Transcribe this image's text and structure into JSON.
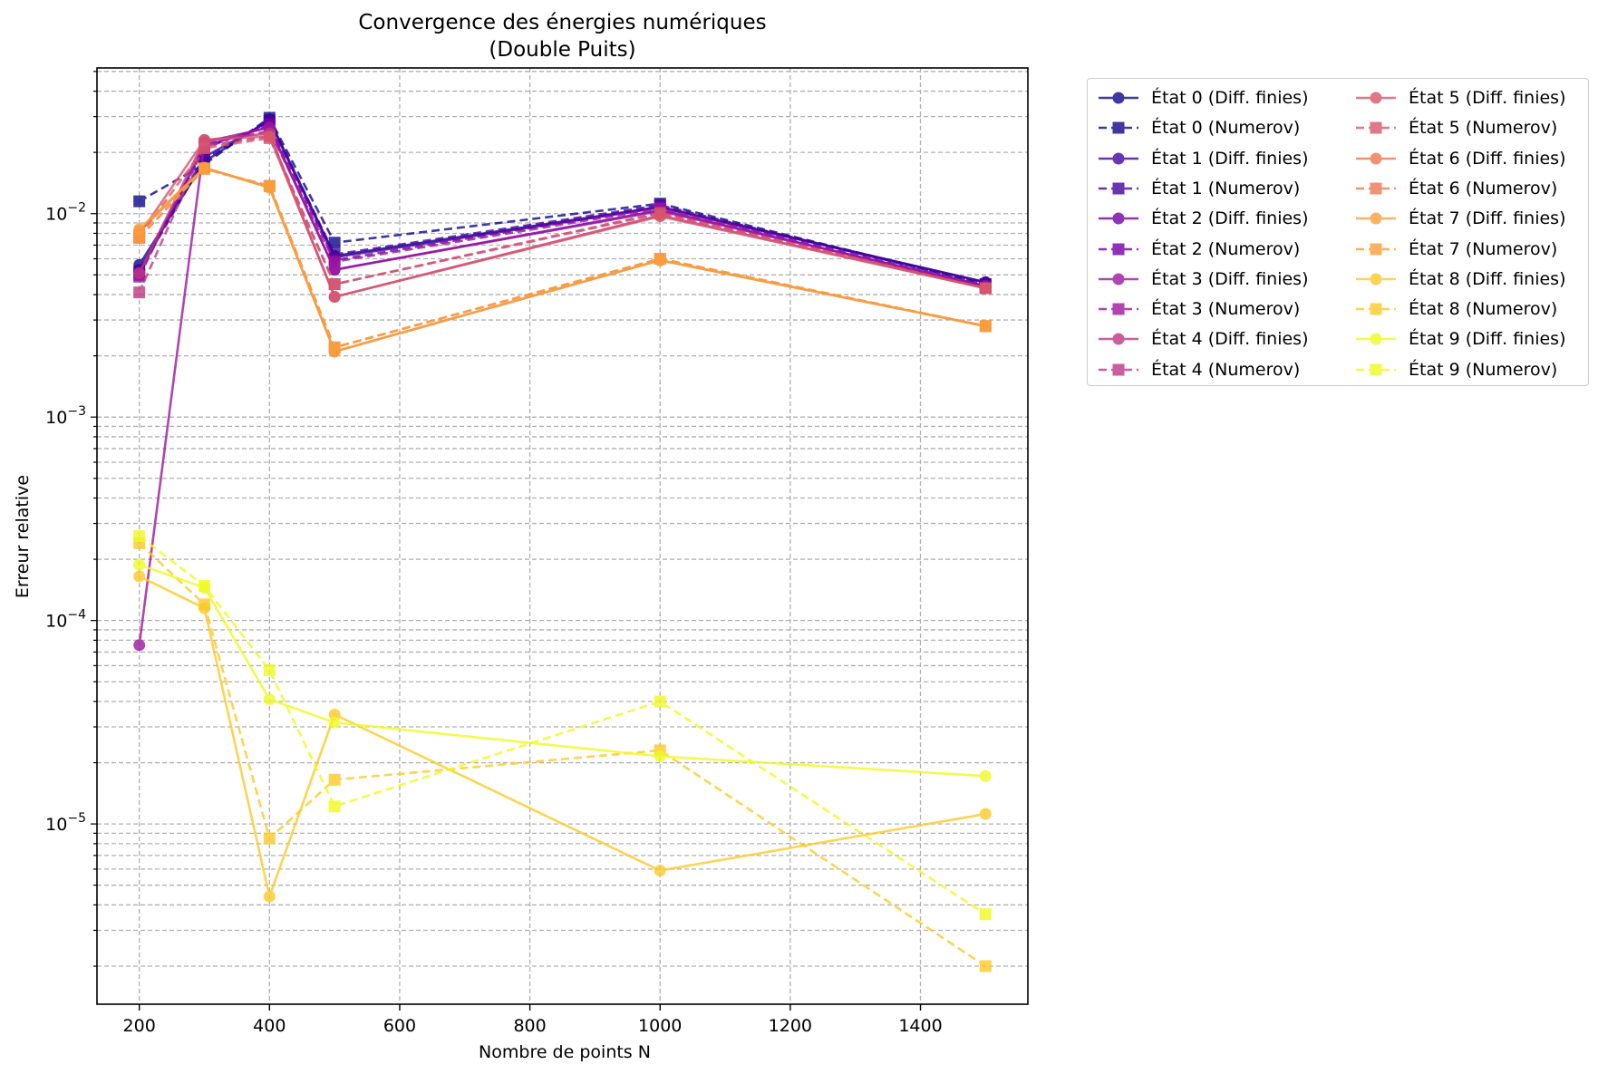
{
  "title": {
    "line1": "Convergence des énergies numériques",
    "line2": "(Double Puits)"
  },
  "chart_data": {
    "type": "line",
    "xlabel": "Nombre de points N",
    "ylabel": "Erreur relative",
    "xlim": [
      135,
      1565
    ],
    "ylim": [
      1.3e-06,
      0.052
    ],
    "yscale": "log",
    "grid": true,
    "legend_position": "outside-top-right",
    "x": [
      200,
      300,
      400,
      500,
      1000,
      1500
    ],
    "xticks": [
      200,
      400,
      600,
      800,
      1000,
      1200,
      1400
    ],
    "yticks": [
      {
        "value": 0.01,
        "base": "10",
        "exp": "−2"
      },
      {
        "value": 0.001,
        "base": "10",
        "exp": "−3"
      },
      {
        "value": 0.0001,
        "base": "10",
        "exp": "−4"
      },
      {
        "value": 1e-05,
        "base": "10",
        "exp": "−5"
      }
    ],
    "series": [
      {
        "name": "État 0 (Diff. finies)",
        "color": "#0d0887",
        "dash": "solid",
        "marker": "circle",
        "values": [
          0.0056,
          0.018,
          0.029,
          0.0062,
          0.0108,
          0.0046
        ]
      },
      {
        "name": "État 0 (Numerov)",
        "color": "#0d0887",
        "dash": "dashed",
        "marker": "square",
        "values": [
          0.0115,
          0.0175,
          0.0296,
          0.0072,
          0.0112,
          0.0045
        ]
      },
      {
        "name": "État 1 (Diff. finies)",
        "color": "#46039f",
        "dash": "solid",
        "marker": "circle",
        "values": [
          0.0053,
          0.019,
          0.0285,
          0.0061,
          0.0107,
          0.0046
        ]
      },
      {
        "name": "État 1 (Numerov)",
        "color": "#46039f",
        "dash": "dashed",
        "marker": "square",
        "values": [
          0.0052,
          0.0185,
          0.0288,
          0.0063,
          0.011,
          0.0045
        ]
      },
      {
        "name": "État 2 (Diff. finies)",
        "color": "#7201a8",
        "dash": "solid",
        "marker": "circle",
        "values": [
          0.0051,
          0.0215,
          0.0268,
          0.0053,
          0.0104,
          0.0044
        ]
      },
      {
        "name": "État 2 (Numerov)",
        "color": "#7201a8",
        "dash": "dashed",
        "marker": "square",
        "values": [
          0.005,
          0.021,
          0.0275,
          0.0059,
          0.0108,
          0.0044
        ]
      },
      {
        "name": "État 3 (Diff. finies)",
        "color": "#9c179e",
        "dash": "solid",
        "marker": "circle",
        "values": [
          7.57e-05,
          0.0225,
          0.0265,
          0.0053,
          0.0103,
          0.0044
        ]
      },
      {
        "name": "État 3 (Numerov)",
        "color": "#9c179e",
        "dash": "dashed",
        "marker": "square",
        "values": [
          0.0049,
          0.022,
          0.0255,
          0.0058,
          0.0106,
          0.0043
        ]
      },
      {
        "name": "État 4 (Diff. finies)",
        "color": "#bd3786",
        "dash": "solid",
        "marker": "circle",
        "values": [
          0.0051,
          0.023,
          0.0248,
          0.0039,
          0.0098,
          0.0043
        ]
      },
      {
        "name": "État 4 (Numerov)",
        "color": "#bd3786",
        "dash": "dashed",
        "marker": "square",
        "values": [
          0.0041,
          0.0215,
          0.024,
          0.0045,
          0.0101,
          0.0043
        ]
      },
      {
        "name": "État 5 (Diff. finies)",
        "color": "#d8576b",
        "dash": "solid",
        "marker": "circle",
        "values": [
          0.0079,
          0.023,
          0.024,
          0.0039,
          0.0097,
          0.0043
        ]
      },
      {
        "name": "État 5 (Numerov)",
        "color": "#d8576b",
        "dash": "dashed",
        "marker": "square",
        "values": [
          0.0077,
          0.021,
          0.0235,
          0.0045,
          0.01,
          0.0043
        ]
      },
      {
        "name": "État 6 (Diff. finies)",
        "color": "#ed7953",
        "dash": "solid",
        "marker": "circle",
        "values": [
          0.0082,
          0.0168,
          0.0135,
          0.0021,
          0.0059,
          0.0028
        ]
      },
      {
        "name": "État 6 (Numerov)",
        "color": "#ed7953",
        "dash": "dashed",
        "marker": "square",
        "values": [
          0.0076,
          0.0166,
          0.0137,
          0.0022,
          0.006,
          0.0028
        ]
      },
      {
        "name": "État 7 (Diff. finies)",
        "color": "#fb9f3a",
        "dash": "solid",
        "marker": "circle",
        "values": [
          0.0084,
          0.0168,
          0.0134,
          0.0021,
          0.0059,
          0.0028
        ]
      },
      {
        "name": "État 7 (Numerov)",
        "color": "#fb9f3a",
        "dash": "dashed",
        "marker": "square",
        "values": [
          0.0077,
          0.0167,
          0.0136,
          0.0022,
          0.006,
          0.0028
        ]
      },
      {
        "name": "État 8 (Diff. finies)",
        "color": "#fdca26",
        "dash": "solid",
        "marker": "circle",
        "values": [
          0.000165,
          0.000115,
          4.4e-06,
          3.45e-05,
          5.9e-06,
          1.12e-05
        ]
      },
      {
        "name": "État 8 (Numerov)",
        "color": "#fdca26",
        "dash": "dashed",
        "marker": "square",
        "values": [
          0.00024,
          0.00012,
          8.5e-06,
          1.65e-05,
          2.3e-05,
          2e-06
        ]
      },
      {
        "name": "État 9 (Diff. finies)",
        "color": "#f0f921",
        "dash": "solid",
        "marker": "circle",
        "values": [
          0.000188,
          0.000145,
          4.1e-05,
          3.15e-05,
          2.15e-05,
          1.72e-05
        ]
      },
      {
        "name": "État 9 (Numerov)",
        "color": "#f0f921",
        "dash": "dashed",
        "marker": "square",
        "values": [
          0.00026,
          0.000148,
          5.7e-05,
          1.22e-05,
          4e-05,
          3.6e-06
        ]
      }
    ]
  }
}
